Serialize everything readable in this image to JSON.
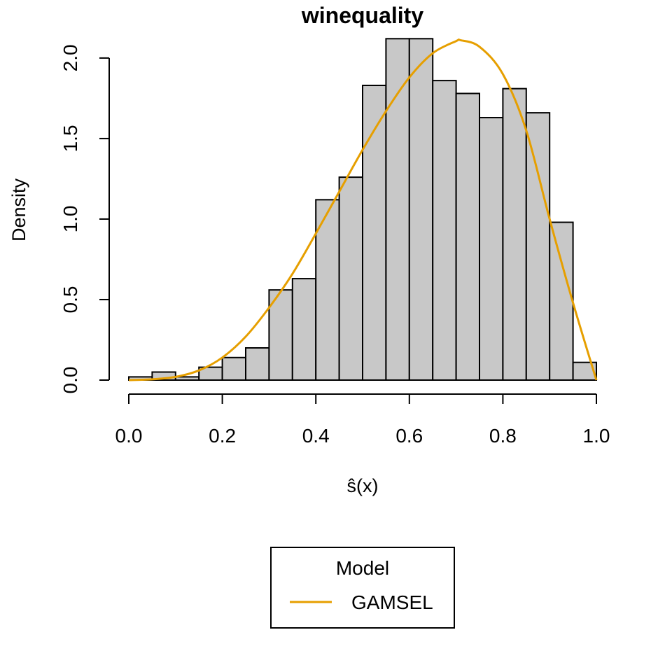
{
  "chart_data": {
    "type": "bar",
    "title": "winequality",
    "xlabel": "ŝ(x)",
    "ylabel": "Density",
    "xlim": [
      0,
      1
    ],
    "ylim": [
      0,
      2.13
    ],
    "x_ticks": [
      "0.0",
      "0.2",
      "0.4",
      "0.6",
      "0.8",
      "1.0"
    ],
    "y_ticks": [
      "0.0",
      "0.5",
      "1.0",
      "1.5",
      "2.0"
    ],
    "grid": false,
    "bin_edges": [
      0.0,
      0.05,
      0.1,
      0.15,
      0.2,
      0.25,
      0.3,
      0.35,
      0.4,
      0.45,
      0.5,
      0.55,
      0.6,
      0.65,
      0.7,
      0.75,
      0.8,
      0.85,
      0.9,
      0.95,
      1.0
    ],
    "values": [
      0.02,
      0.05,
      0.02,
      0.08,
      0.14,
      0.2,
      0.56,
      0.63,
      1.12,
      1.26,
      1.83,
      2.12,
      2.12,
      1.86,
      1.78,
      1.63,
      1.81,
      1.66,
      0.98,
      0.11
    ],
    "bar_fill": "#c8c8c8",
    "series": [
      {
        "name": "GAMSEL",
        "type": "line",
        "color": "#e69f00",
        "x": [
          0.0,
          0.05,
          0.1,
          0.15,
          0.2,
          0.25,
          0.3,
          0.35,
          0.4,
          0.45,
          0.5,
          0.55,
          0.6,
          0.65,
          0.7,
          0.71,
          0.75,
          0.8,
          0.85,
          0.9,
          0.95,
          1.0
        ],
        "y": [
          0.0,
          0.005,
          0.02,
          0.06,
          0.14,
          0.27,
          0.45,
          0.66,
          0.91,
          1.17,
          1.43,
          1.67,
          1.88,
          2.03,
          2.105,
          2.11,
          2.07,
          1.9,
          1.55,
          1.0,
          0.48,
          0.0
        ]
      }
    ],
    "legend": {
      "title": "Model",
      "placement": "bottom-center",
      "entries": [
        {
          "label": "GAMSEL",
          "color": "#e69f00"
        }
      ]
    }
  }
}
